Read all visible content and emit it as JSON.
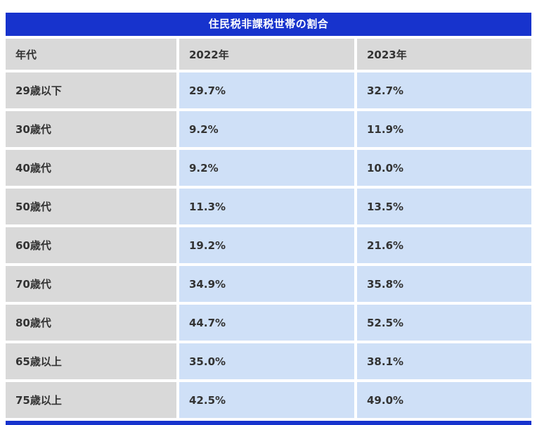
{
  "title": "住民税非課税世帯の割合",
  "table": {
    "headers": [
      "年代",
      "2022年",
      "2023年"
    ],
    "rows": [
      [
        "29歳以下",
        "29.7%",
        "32.7%"
      ],
      [
        "30歳代",
        "9.2%",
        "11.9%"
      ],
      [
        "40歳代",
        "9.2%",
        "10.0%"
      ],
      [
        "50歳代",
        "11.3%",
        "13.5%"
      ],
      [
        "60歳代",
        "19.2%",
        "21.6%"
      ],
      [
        "70歳代",
        "34.9%",
        "35.8%"
      ],
      [
        "80歳代",
        "44.7%",
        "52.5%"
      ],
      [
        "65歳以上",
        "35.0%",
        "38.1%"
      ],
      [
        "75歳以上",
        "42.5%",
        "49.0%"
      ]
    ]
  },
  "colors": {
    "title_bg": "#1733cd",
    "title_text": "#ffffff",
    "header_bg": "#d9d9d9",
    "label_bg": "#d9d9d9",
    "value_bg": "#cfe0f7",
    "cell_text": "#333333"
  },
  "chart_data": {
    "type": "table",
    "title": "住民税非課税世帯の割合",
    "categories": [
      "29歳以下",
      "30歳代",
      "40歳代",
      "50歳代",
      "60歳代",
      "70歳代",
      "80歳代",
      "65歳以上",
      "75歳以上"
    ],
    "series": [
      {
        "name": "2022年",
        "values": [
          29.7,
          9.2,
          9.2,
          11.3,
          19.2,
          34.9,
          44.7,
          35.0,
          42.5
        ]
      },
      {
        "name": "2023年",
        "values": [
          32.7,
          11.9,
          10.0,
          13.5,
          21.6,
          35.8,
          52.5,
          38.1,
          49.0
        ]
      }
    ],
    "unit": "%",
    "legend_position": "header-row",
    "grid": false
  }
}
